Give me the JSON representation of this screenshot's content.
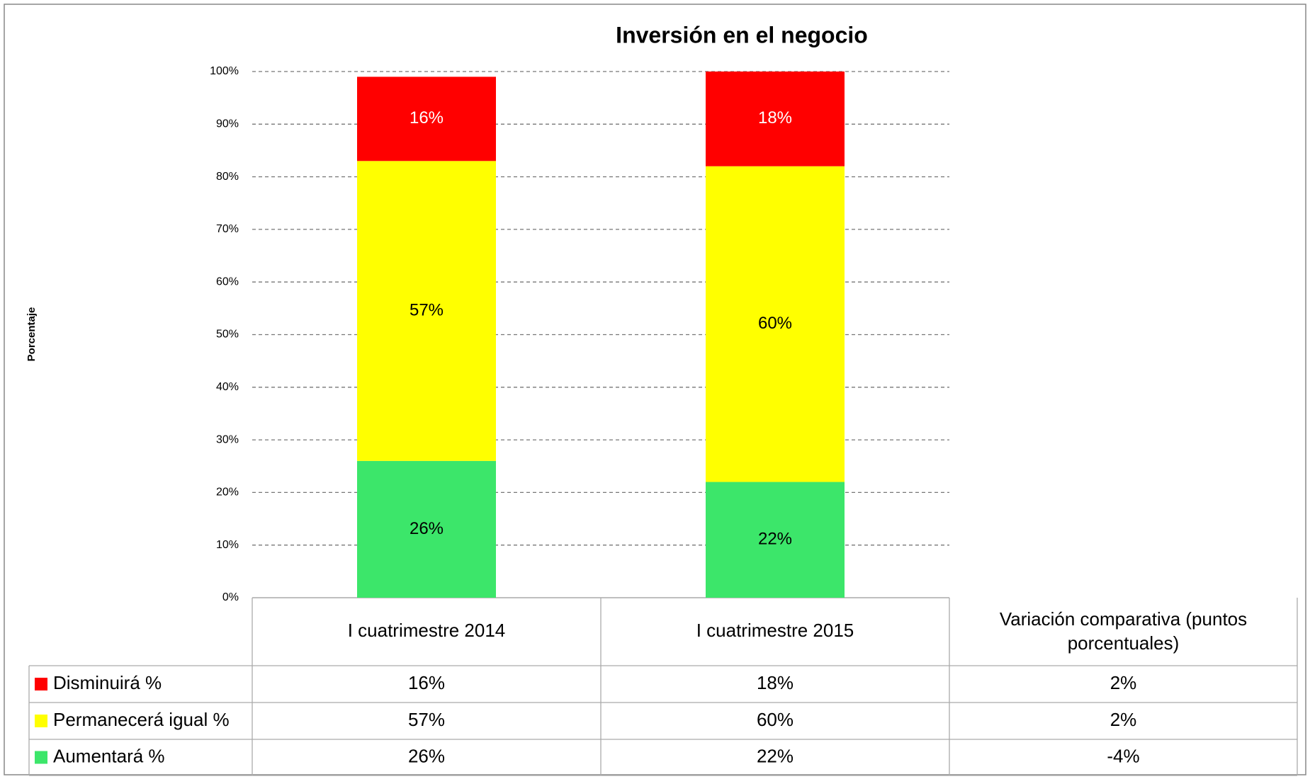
{
  "chart_data": {
    "type": "stacked_bar",
    "title": "Inversión en el negocio",
    "y_label": "Porcentaje",
    "categories": [
      "I cuatrimestre 2014",
      "I cuatrimestre 2015"
    ],
    "series": [
      {
        "name": "Disminuirá %",
        "color": "#ff0000",
        "label_color": "#ffffff",
        "values": [
          16,
          18
        ],
        "value_labels": [
          "16%",
          "18%"
        ]
      },
      {
        "name": "Permanecerá igual %",
        "color": "#ffff00",
        "label_color": "#000000",
        "values": [
          57,
          60
        ],
        "value_labels": [
          "57%",
          "60%"
        ]
      },
      {
        "name": "Aumentará %",
        "color": "#3ce66a",
        "label_color": "#000000",
        "values": [
          26,
          22
        ],
        "value_labels": [
          "26%",
          "22%"
        ]
      }
    ],
    "variation": {
      "label": "Variación comparativa (puntos porcentuales)",
      "values": [
        2,
        2,
        -4
      ],
      "value_labels": [
        "2%",
        "2%",
        "-4%"
      ]
    },
    "ylim": [
      0,
      100
    ],
    "yticks": [
      {
        "value": 0,
        "label": "0%"
      },
      {
        "value": 10,
        "label": "10%"
      },
      {
        "value": 20,
        "label": "20%"
      },
      {
        "value": 30,
        "label": "30%"
      },
      {
        "value": 40,
        "label": "40%"
      },
      {
        "value": 50,
        "label": "50%"
      },
      {
        "value": 60,
        "label": "60%"
      },
      {
        "value": 70,
        "label": "70%"
      },
      {
        "value": 80,
        "label": "80%"
      },
      {
        "value": 90,
        "label": "90%"
      },
      {
        "value": 100,
        "label": "100%"
      }
    ],
    "grid": true
  }
}
